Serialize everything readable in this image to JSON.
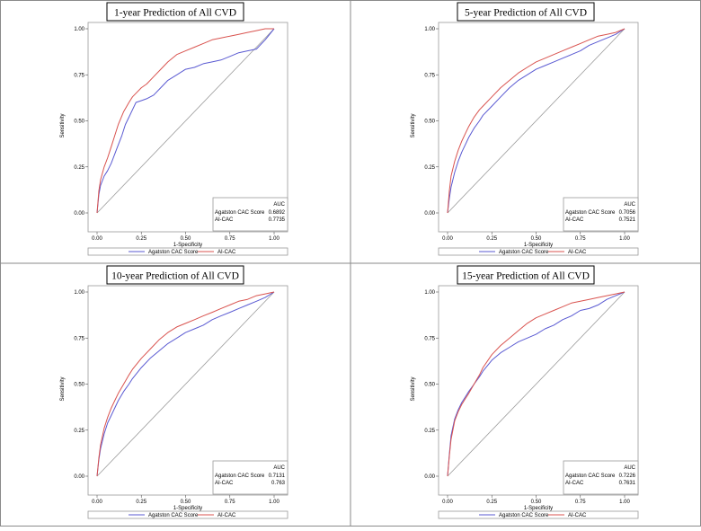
{
  "chart_data": [
    {
      "type": "line",
      "title": "1-year Prediction of All CVD",
      "xlabel": "1-Specificity",
      "ylabel": "Sensitivity",
      "xlim": [
        0,
        1
      ],
      "ylim": [
        0,
        1
      ],
      "x_ticks": [
        "0.00",
        "0.25",
        "0.50",
        "0.75",
        "1.00"
      ],
      "y_ticks": [
        "0.00",
        "0.25",
        "0.50",
        "0.75",
        "1.00"
      ],
      "auc_header": "AUC",
      "series": [
        {
          "name": "Agatston CAC Score",
          "auc": "0.6892",
          "color": "#5a5ad2",
          "x": [
            0,
            0.01,
            0.02,
            0.04,
            0.06,
            0.08,
            0.1,
            0.12,
            0.14,
            0.16,
            0.18,
            0.2,
            0.22,
            0.25,
            0.28,
            0.32,
            0.36,
            0.4,
            0.45,
            0.5,
            0.55,
            0.6,
            0.65,
            0.7,
            0.75,
            0.8,
            0.85,
            0.9,
            0.95,
            1.0
          ],
          "y": [
            0,
            0.1,
            0.15,
            0.2,
            0.23,
            0.27,
            0.32,
            0.37,
            0.42,
            0.48,
            0.52,
            0.56,
            0.6,
            0.61,
            0.62,
            0.64,
            0.68,
            0.72,
            0.75,
            0.78,
            0.79,
            0.81,
            0.82,
            0.83,
            0.85,
            0.87,
            0.88,
            0.89,
            0.94,
            1.0
          ]
        },
        {
          "name": "AI-CAC",
          "auc": "0.7735",
          "color": "#d9534f",
          "x": [
            0,
            0.01,
            0.02,
            0.04,
            0.06,
            0.08,
            0.1,
            0.12,
            0.15,
            0.18,
            0.2,
            0.22,
            0.25,
            0.28,
            0.32,
            0.36,
            0.4,
            0.45,
            0.5,
            0.55,
            0.6,
            0.65,
            0.7,
            0.75,
            0.8,
            0.85,
            0.9,
            0.95,
            1.0
          ],
          "y": [
            0,
            0.12,
            0.18,
            0.25,
            0.3,
            0.36,
            0.42,
            0.48,
            0.55,
            0.6,
            0.63,
            0.65,
            0.68,
            0.7,
            0.74,
            0.78,
            0.82,
            0.86,
            0.88,
            0.9,
            0.92,
            0.94,
            0.95,
            0.96,
            0.97,
            0.98,
            0.99,
            1.0,
            1.0
          ]
        }
      ]
    },
    {
      "type": "line",
      "title": "5-year Prediction of All CVD",
      "xlabel": "1-Specificity",
      "ylabel": "Sensitivity",
      "xlim": [
        0,
        1
      ],
      "ylim": [
        0,
        1
      ],
      "x_ticks": [
        "0.00",
        "0.25",
        "0.50",
        "0.75",
        "1.00"
      ],
      "y_ticks": [
        "0.00",
        "0.25",
        "0.50",
        "0.75",
        "1.00"
      ],
      "auc_header": "AUC",
      "series": [
        {
          "name": "Agatston CAC Score",
          "auc": "0.7056",
          "color": "#5a5ad2",
          "x": [
            0,
            0.01,
            0.02,
            0.04,
            0.06,
            0.08,
            0.1,
            0.12,
            0.15,
            0.18,
            0.2,
            0.25,
            0.3,
            0.35,
            0.4,
            0.45,
            0.5,
            0.55,
            0.6,
            0.65,
            0.7,
            0.75,
            0.8,
            0.85,
            0.9,
            0.95,
            1.0
          ],
          "y": [
            0,
            0.08,
            0.14,
            0.22,
            0.28,
            0.33,
            0.37,
            0.41,
            0.46,
            0.5,
            0.53,
            0.58,
            0.63,
            0.68,
            0.72,
            0.75,
            0.78,
            0.8,
            0.82,
            0.84,
            0.86,
            0.88,
            0.91,
            0.93,
            0.95,
            0.97,
            1.0
          ]
        },
        {
          "name": "AI-CAC",
          "auc": "0.7521",
          "color": "#d9534f",
          "x": [
            0,
            0.01,
            0.02,
            0.04,
            0.06,
            0.08,
            0.1,
            0.12,
            0.15,
            0.18,
            0.2,
            0.25,
            0.3,
            0.35,
            0.4,
            0.45,
            0.5,
            0.55,
            0.6,
            0.65,
            0.7,
            0.75,
            0.8,
            0.85,
            0.9,
            0.95,
            1.0
          ],
          "y": [
            0,
            0.12,
            0.2,
            0.28,
            0.34,
            0.39,
            0.43,
            0.47,
            0.52,
            0.56,
            0.58,
            0.63,
            0.68,
            0.72,
            0.76,
            0.79,
            0.82,
            0.84,
            0.86,
            0.88,
            0.9,
            0.92,
            0.94,
            0.96,
            0.97,
            0.98,
            1.0
          ]
        }
      ]
    },
    {
      "type": "line",
      "title": "10-year Prediction of All CVD",
      "xlabel": "1-Specificity",
      "ylabel": "Sensitivity",
      "xlim": [
        0,
        1
      ],
      "ylim": [
        0,
        1
      ],
      "x_ticks": [
        "0.00",
        "0.25",
        "0.50",
        "0.75",
        "1.00"
      ],
      "y_ticks": [
        "0.00",
        "0.25",
        "0.50",
        "0.75",
        "1.00"
      ],
      "auc_header": "AUC",
      "series": [
        {
          "name": "Agatston CAC Score",
          "auc": "0.7131",
          "color": "#5a5ad2",
          "x": [
            0,
            0.01,
            0.02,
            0.04,
            0.06,
            0.08,
            0.1,
            0.12,
            0.15,
            0.18,
            0.2,
            0.25,
            0.3,
            0.35,
            0.4,
            0.45,
            0.5,
            0.55,
            0.6,
            0.65,
            0.7,
            0.75,
            0.8,
            0.85,
            0.9,
            0.95,
            1.0
          ],
          "y": [
            0,
            0.09,
            0.15,
            0.23,
            0.29,
            0.33,
            0.37,
            0.41,
            0.46,
            0.5,
            0.53,
            0.59,
            0.64,
            0.68,
            0.72,
            0.75,
            0.78,
            0.8,
            0.82,
            0.85,
            0.87,
            0.89,
            0.91,
            0.93,
            0.95,
            0.97,
            1.0
          ]
        },
        {
          "name": "AI-CAC",
          "auc": "0.763",
          "color": "#d9534f",
          "x": [
            0,
            0.01,
            0.02,
            0.04,
            0.06,
            0.08,
            0.1,
            0.12,
            0.15,
            0.18,
            0.2,
            0.25,
            0.3,
            0.35,
            0.4,
            0.45,
            0.5,
            0.55,
            0.6,
            0.65,
            0.7,
            0.75,
            0.8,
            0.85,
            0.9,
            0.95,
            1.0
          ],
          "y": [
            0,
            0.1,
            0.17,
            0.26,
            0.32,
            0.37,
            0.41,
            0.45,
            0.5,
            0.55,
            0.58,
            0.64,
            0.69,
            0.74,
            0.78,
            0.81,
            0.83,
            0.85,
            0.87,
            0.89,
            0.91,
            0.93,
            0.95,
            0.96,
            0.98,
            0.99,
            1.0
          ]
        }
      ]
    },
    {
      "type": "line",
      "title": "15-year Prediction of All CVD",
      "xlabel": "1-Specificity",
      "ylabel": "Sensitivity",
      "xlim": [
        0,
        1
      ],
      "ylim": [
        0,
        1
      ],
      "x_ticks": [
        "0.00",
        "0.25",
        "0.50",
        "0.75",
        "1.00"
      ],
      "y_ticks": [
        "0.00",
        "0.25",
        "0.50",
        "0.75",
        "1.00"
      ],
      "auc_header": "AUC",
      "series": [
        {
          "name": "Agatston CAC Score",
          "auc": "0.7226",
          "color": "#5a5ad2",
          "x": [
            0,
            0.01,
            0.02,
            0.04,
            0.06,
            0.08,
            0.1,
            0.12,
            0.15,
            0.18,
            0.2,
            0.25,
            0.3,
            0.35,
            0.4,
            0.45,
            0.5,
            0.55,
            0.6,
            0.65,
            0.7,
            0.75,
            0.8,
            0.85,
            0.9,
            0.95,
            1.0
          ],
          "y": [
            0,
            0.12,
            0.22,
            0.31,
            0.36,
            0.4,
            0.43,
            0.46,
            0.5,
            0.54,
            0.57,
            0.63,
            0.67,
            0.7,
            0.73,
            0.75,
            0.77,
            0.8,
            0.82,
            0.85,
            0.87,
            0.9,
            0.91,
            0.93,
            0.96,
            0.98,
            1.0
          ]
        },
        {
          "name": "AI-CAC",
          "auc": "0.7631",
          "color": "#d9534f",
          "x": [
            0,
            0.01,
            0.02,
            0.04,
            0.06,
            0.08,
            0.1,
            0.12,
            0.15,
            0.18,
            0.2,
            0.25,
            0.3,
            0.35,
            0.4,
            0.45,
            0.5,
            0.55,
            0.6,
            0.65,
            0.7,
            0.75,
            0.8,
            0.85,
            0.9,
            0.95,
            1.0
          ],
          "y": [
            0,
            0.11,
            0.2,
            0.3,
            0.35,
            0.39,
            0.42,
            0.45,
            0.5,
            0.55,
            0.59,
            0.66,
            0.71,
            0.75,
            0.79,
            0.83,
            0.86,
            0.88,
            0.9,
            0.92,
            0.94,
            0.95,
            0.96,
            0.97,
            0.98,
            0.99,
            1.0
          ]
        }
      ]
    }
  ]
}
